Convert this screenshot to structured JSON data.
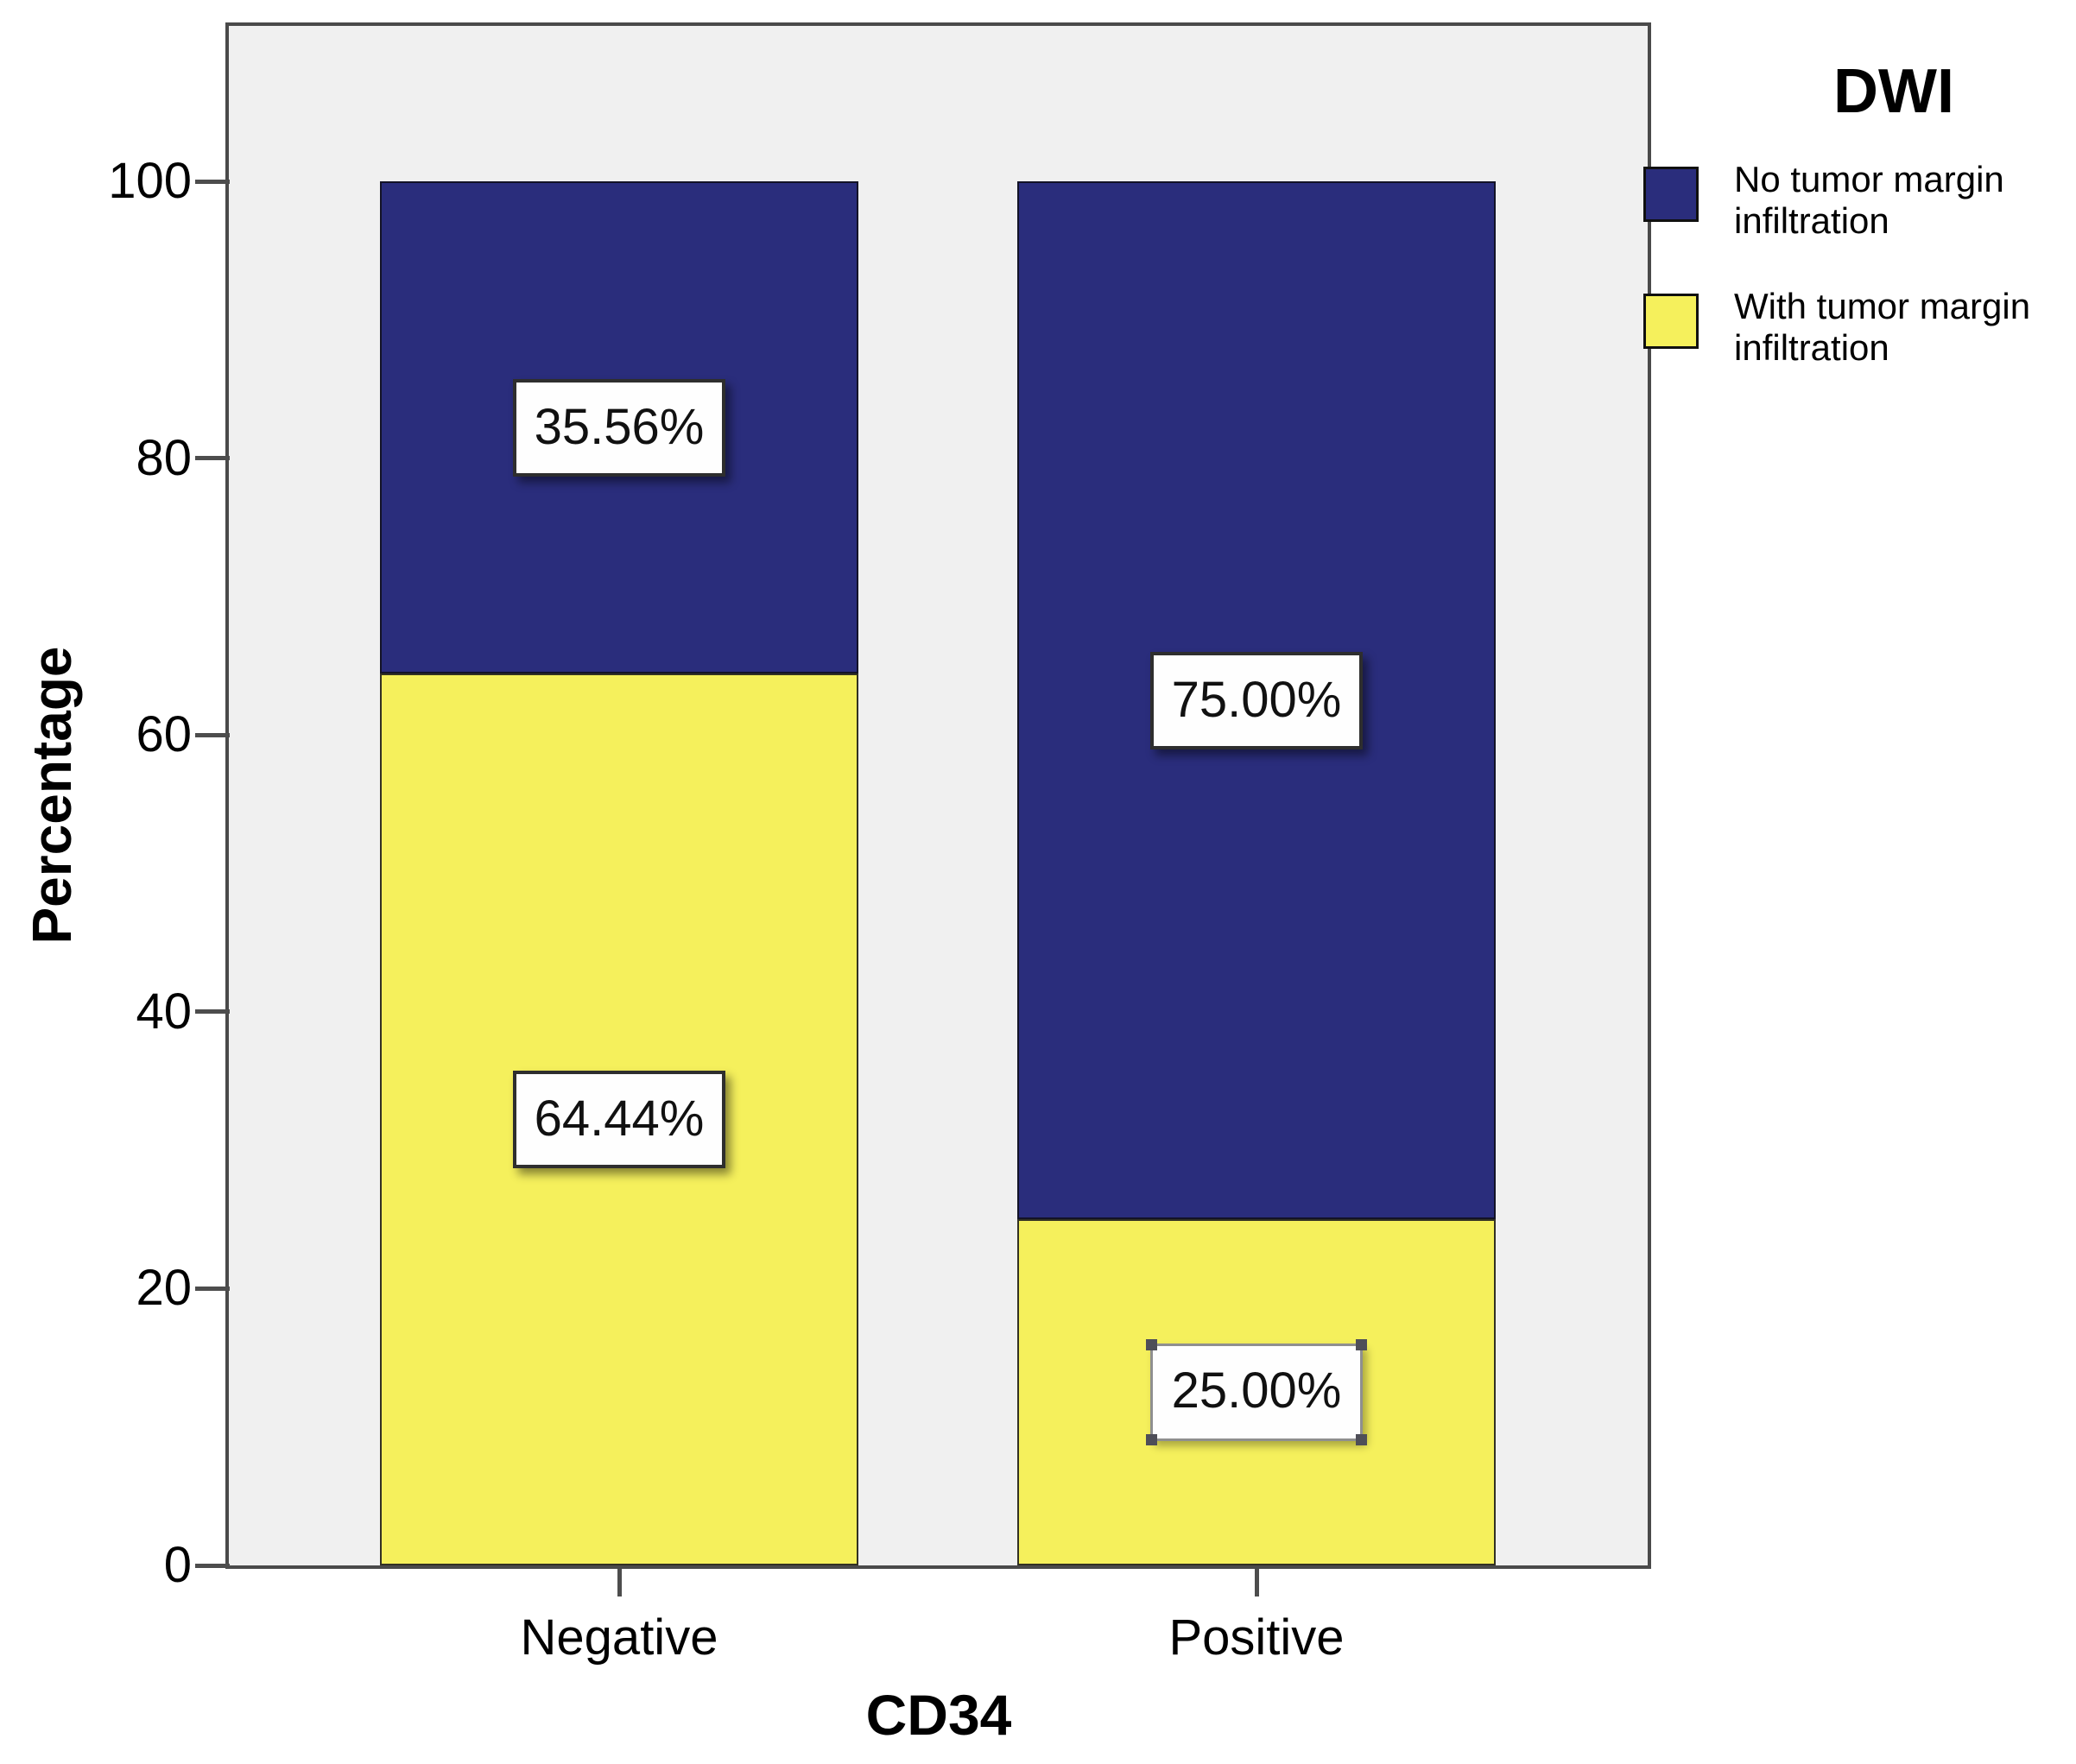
{
  "chart_data": {
    "type": "bar",
    "stacked": true,
    "title": "",
    "xlabel": "CD34",
    "ylabel": "Percentage",
    "ylim": [
      0,
      100
    ],
    "yticks": [
      0,
      20,
      40,
      60,
      80,
      100
    ],
    "categories": [
      "Negative",
      "Positive"
    ],
    "series": [
      {
        "name": "No tumor margin infiltration",
        "color": "#2A2D7C",
        "values": [
          35.56,
          75.0
        ],
        "labels": [
          "35.56%",
          "75.00%"
        ]
      },
      {
        "name": "With tumor margin infiltration",
        "color": "#F5F05C",
        "values": [
          64.44,
          25.0
        ],
        "labels": [
          "64.44%",
          "25.00%"
        ]
      }
    ],
    "legend": {
      "title": "DWI",
      "position": "top-right"
    },
    "grid": false,
    "plot_background": "#F0F0F0"
  }
}
